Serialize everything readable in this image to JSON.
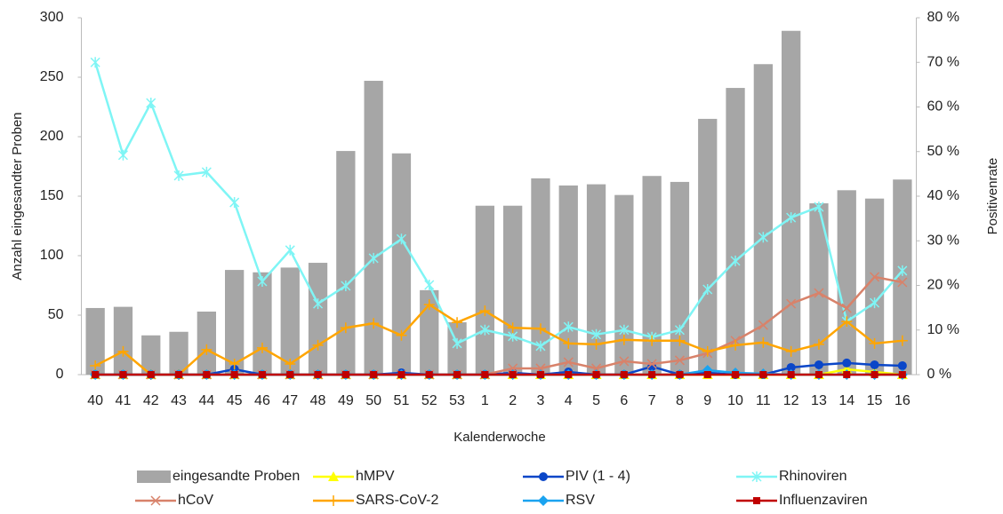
{
  "chart_data": {
    "type": "bar",
    "x_label": "Kalenderwoche",
    "y_label": "Anzahl eingesandter Proben",
    "y2_label": "Positivenrate",
    "categories": [
      "40",
      "41",
      "42",
      "43",
      "44",
      "45",
      "46",
      "47",
      "48",
      "49",
      "50",
      "51",
      "52",
      "53",
      "1",
      "2",
      "3",
      "4",
      "5",
      "6",
      "7",
      "8",
      "9",
      "10",
      "11",
      "12",
      "13",
      "14",
      "15",
      "16"
    ],
    "ylim": [
      0,
      300
    ],
    "yticks": [
      0,
      50,
      100,
      150,
      200,
      250,
      300
    ],
    "y2lim": [
      0,
      80
    ],
    "y2ticks": [
      {
        "value": 0,
        "label": "0 %"
      },
      {
        "value": 10,
        "label": "10 %"
      },
      {
        "value": 20,
        "label": "20 %"
      },
      {
        "value": 30,
        "label": "30 %"
      },
      {
        "value": 40,
        "label": "40 %"
      },
      {
        "value": 50,
        "label": "50 %"
      },
      {
        "value": 60,
        "label": "60 %"
      },
      {
        "value": 70,
        "label": "70 %"
      },
      {
        "value": 80,
        "label": "80 %"
      }
    ],
    "grid": false,
    "legend": "bottom",
    "series": [
      {
        "name": "eingesandte Proben",
        "type": "bar",
        "axis": "y",
        "color": "#a6a6a6",
        "values": [
          56,
          57,
          33,
          36,
          53,
          88,
          86,
          90,
          94,
          188,
          247,
          186,
          71,
          44,
          142,
          142,
          165,
          159,
          160,
          151,
          167,
          162,
          215,
          241,
          261,
          289,
          144,
          155,
          148,
          164
        ]
      },
      {
        "name": "hMPV",
        "type": "line",
        "axis": "y2",
        "color": "#ffff00",
        "marker": "triangle",
        "values": [
          0,
          0,
          0,
          0,
          0,
          0,
          0,
          0,
          0,
          0,
          0,
          0,
          0,
          0,
          0,
          0,
          0,
          0,
          0,
          0,
          0,
          0,
          0,
          0,
          0,
          0,
          0,
          1.2,
          0.6,
          0
        ]
      },
      {
        "name": "PIV (1 - 4)",
        "type": "line",
        "axis": "y2",
        "color": "#0a46c8",
        "marker": "circle",
        "values": [
          0,
          0,
          0,
          0,
          0,
          1.2,
          0,
          0,
          0,
          0,
          0,
          0.4,
          0,
          0,
          0,
          0.4,
          0,
          0.6,
          0,
          0,
          1.8,
          0,
          0.4,
          0,
          0,
          1.6,
          2.2,
          2.6,
          2.2,
          2.0
        ]
      },
      {
        "name": "Rhinoviren",
        "type": "line",
        "axis": "y2",
        "color": "#7ff5f5",
        "marker": "star",
        "values": [
          70.0,
          49.2,
          60.9,
          44.6,
          45.4,
          38.6,
          20.9,
          27.9,
          15.9,
          19.9,
          26.1,
          30.4,
          20.1,
          7.0,
          10.0,
          8.6,
          6.4,
          10.7,
          9.0,
          10.0,
          8.4,
          10.0,
          19.1,
          25.5,
          30.8,
          35.2,
          37.6,
          11.9,
          16.1,
          23.3
        ]
      },
      {
        "name": "hCoV",
        "type": "line",
        "axis": "y2",
        "color": "#d8826a",
        "marker": "x",
        "values": [
          0,
          0,
          0,
          0,
          0,
          0,
          0,
          0,
          0,
          0,
          0,
          0,
          0,
          0,
          0,
          1.4,
          1.4,
          2.8,
          1.4,
          3.0,
          2.4,
          3.2,
          4.8,
          7.6,
          11.1,
          15.9,
          18.3,
          14.9,
          21.9,
          20.7
        ]
      },
      {
        "name": "SARS-CoV-2",
        "type": "line",
        "axis": "y2",
        "color": "#ffa500",
        "marker": "plus",
        "values": [
          2.0,
          5.2,
          0,
          0,
          5.6,
          2.4,
          6.0,
          2.4,
          6.6,
          10.5,
          11.5,
          8.8,
          15.7,
          11.7,
          14.3,
          10.5,
          10.3,
          7.0,
          6.8,
          7.8,
          7.6,
          7.6,
          5.2,
          6.6,
          7.2,
          5.2,
          6.8,
          11.9,
          7.0,
          7.6
        ]
      },
      {
        "name": "RSV",
        "type": "line",
        "axis": "y2",
        "color": "#1aa3f0",
        "marker": "diamond",
        "values": [
          0,
          0,
          0,
          0,
          0,
          0,
          0,
          0,
          0,
          0,
          0,
          0,
          0,
          0,
          0,
          0,
          0,
          0,
          0,
          0,
          0,
          0,
          1.0,
          0.4,
          0.2,
          0,
          0,
          0,
          0,
          0
        ]
      },
      {
        "name": "Influenzaviren",
        "type": "line",
        "axis": "y2",
        "color": "#c00000",
        "marker": "square",
        "values": [
          0,
          0,
          0,
          0,
          0,
          0,
          0,
          0,
          0,
          0,
          0,
          0,
          0,
          0,
          0,
          0,
          0,
          0,
          0,
          0,
          0,
          0,
          0,
          0,
          0,
          0,
          0,
          0,
          0,
          0
        ]
      }
    ]
  }
}
